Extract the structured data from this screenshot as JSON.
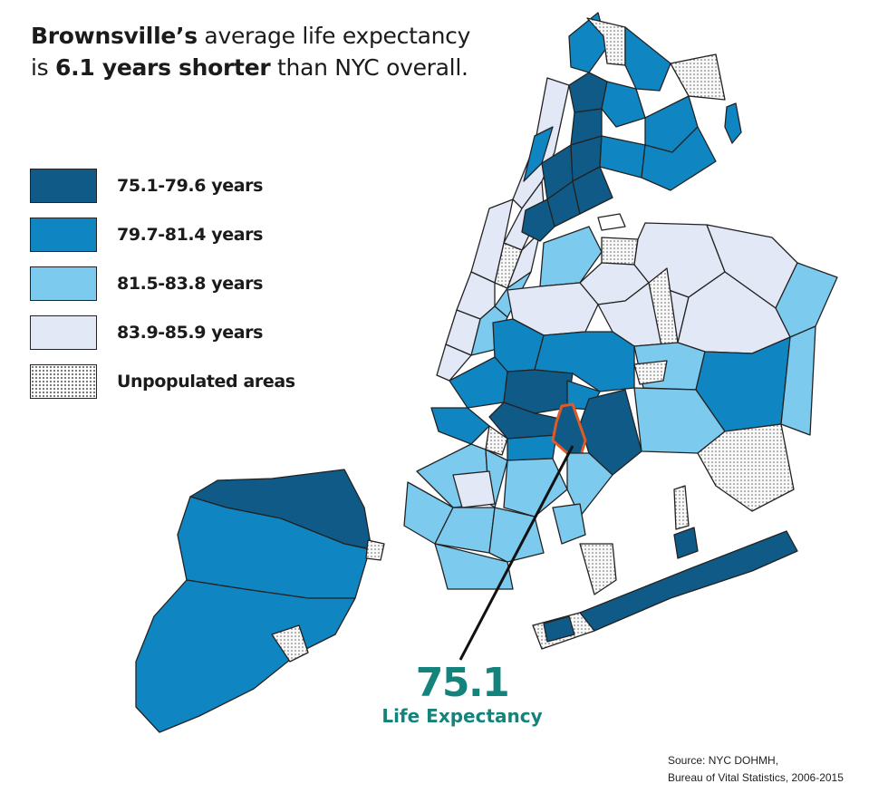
{
  "title": {
    "line1_bold": "Brownsville’s",
    "line1_rest": " average life expectancy",
    "line2_start": "is ",
    "line2_bold": "6.1 years shorter",
    "line2_rest": " than NYC overall."
  },
  "colors": {
    "tier1": "#0f5a86",
    "tier2": "#0f86c2",
    "tier3": "#7ccbef",
    "tier4": "#e3e8f7",
    "unpopulated": "#f4f4f4",
    "highlight": "#e05a26",
    "callout": "#13837c"
  },
  "legend": [
    {
      "label": "75.1-79.6 years",
      "color": "#0f5a86",
      "pattern": "solid"
    },
    {
      "label": "79.7-81.4 years",
      "color": "#0f86c2",
      "pattern": "solid"
    },
    {
      "label": "81.5-83.8 years",
      "color": "#7ccbef",
      "pattern": "solid"
    },
    {
      "label": "83.9-85.9 years",
      "color": "#e3e8f7",
      "pattern": "solid"
    },
    {
      "label": "Unpopulated areas",
      "color": "#f4f4f4",
      "pattern": "dotted"
    }
  ],
  "callout": {
    "value": "75.1",
    "label": "Life Expectancy",
    "highlighted_area": "Brownsville"
  },
  "source": {
    "line1": "Source: NYC DOHMH,",
    "line2": "Bureau of Vital Statistics, 2006-2015"
  }
}
